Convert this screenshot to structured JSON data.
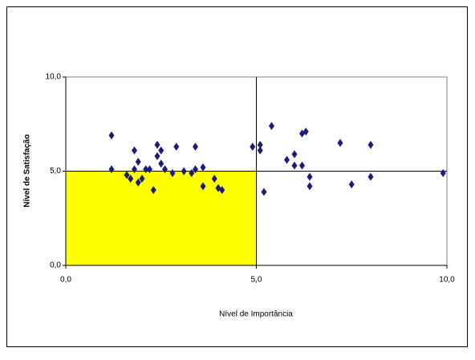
{
  "chart_data": {
    "type": "scatter",
    "xlabel": "Nível de Importância",
    "ylabel": "Nível de Satisfação",
    "x": [
      1.2,
      1.2,
      1.8,
      1.6,
      1.7,
      1.8,
      1.9,
      1.9,
      2.0,
      2.1,
      2.2,
      2.3,
      2.4,
      2.4,
      2.5,
      2.5,
      2.6,
      2.8,
      2.9,
      3.1,
      3.4,
      3.4,
      3.3,
      3.6,
      3.6,
      3.9,
      4.0,
      4.1,
      4.9,
      5.1,
      5.1,
      5.2,
      5.4,
      5.8,
      6.0,
      6.0,
      6.2,
      6.2,
      6.3,
      6.4,
      6.4,
      7.2,
      7.5,
      8.0,
      8.0,
      9.9
    ],
    "y": [
      6.9,
      5.1,
      6.1,
      4.8,
      4.6,
      5.1,
      5.5,
      4.4,
      4.6,
      5.1,
      5.1,
      4.0,
      5.8,
      6.4,
      5.4,
      6.1,
      5.1,
      4.9,
      6.3,
      5.0,
      6.3,
      5.1,
      4.9,
      4.2,
      5.2,
      4.6,
      4.1,
      4.0,
      6.3,
      6.4,
      6.1,
      3.9,
      7.4,
      5.6,
      5.9,
      5.3,
      5.3,
      7.0,
      7.1,
      4.7,
      4.2,
      6.5,
      4.3,
      6.4,
      4.7,
      4.9
    ],
    "color": "#1c1c7c",
    "xlim": [
      0,
      10
    ],
    "ylim": [
      0,
      10
    ],
    "xticks": [
      {
        "value": 0,
        "label": "0,0"
      },
      {
        "value": 5,
        "label": "5,0"
      },
      {
        "value": 10,
        "label": "10,0"
      }
    ],
    "yticks": [
      {
        "value": 0,
        "label": "0,0"
      },
      {
        "value": 5,
        "label": "5,0"
      },
      {
        "value": 10,
        "label": "10,0"
      }
    ],
    "reference_x": 5,
    "reference_y": 5,
    "highlight_color": "#ffff00"
  }
}
